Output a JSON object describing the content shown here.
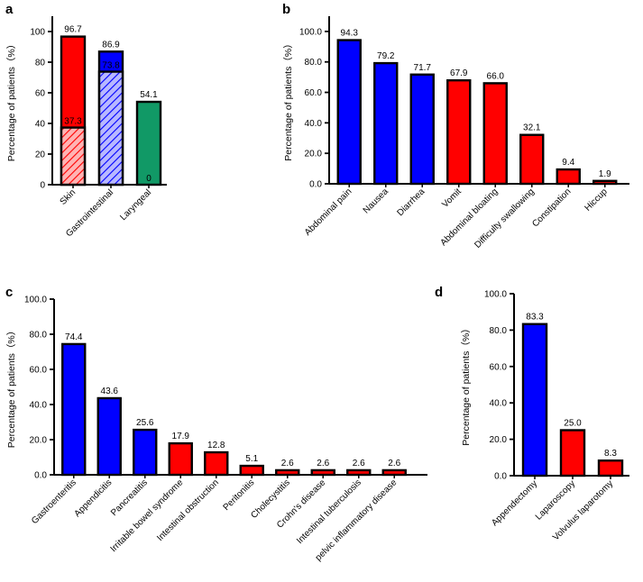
{
  "chart_data": [
    {
      "panel": "a",
      "type": "bar",
      "ylabel": "Percentage of patients（%）",
      "ylim": [
        0,
        110
      ],
      "yticks": [
        "0",
        "20",
        "40",
        "60",
        "80",
        "100"
      ],
      "categories": [
        "Skin",
        "Gastrointestinal",
        "Laryngeal"
      ],
      "values": [
        96.7,
        86.9,
        54.1
      ],
      "labels": [
        "96.7",
        "86.9",
        "54.1"
      ],
      "colors": [
        "#ff0000",
        "#0000ff",
        "#119966"
      ],
      "overlay": {
        "pattern": "hatched",
        "values": [
          37.3,
          73.8,
          0
        ],
        "labels": [
          "37.3",
          "73.8",
          "0"
        ],
        "colors": [
          "#ff0000",
          "#0000ff",
          "#119966"
        ]
      }
    },
    {
      "panel": "b",
      "type": "bar",
      "ylabel": "Percentage of patients（%）",
      "ylim": [
        0,
        110
      ],
      "yticks": [
        "0.0",
        "20.0",
        "40.0",
        "60.0",
        "80.0",
        "100.0"
      ],
      "categories": [
        "Abdominal pain",
        "Nausea",
        "Diarrhea",
        "Vomit",
        "Abdominal bloating",
        "Difficulty swallowing",
        "Constipation",
        "Hiccup"
      ],
      "values": [
        94.3,
        79.2,
        71.7,
        67.9,
        66.0,
        32.1,
        9.4,
        1.9
      ],
      "labels": [
        "94.3",
        "79.2",
        "71.7",
        "67.9",
        "66.0",
        "32.1",
        "9.4",
        "1.9"
      ],
      "colors": [
        "#0000ff",
        "#0000ff",
        "#0000ff",
        "#ff0000",
        "#ff0000",
        "#ff0000",
        "#ff0000",
        "#ff0000"
      ]
    },
    {
      "panel": "c",
      "type": "bar",
      "ylabel": "Percentage of patients（%）",
      "ylim": [
        0,
        100
      ],
      "yticks": [
        "0.0",
        "20.0",
        "40.0",
        "60.0",
        "80.0",
        "100.0"
      ],
      "categories": [
        "Gastroenteritis",
        "Appendicitis",
        "Pancreatitis",
        "Irritable bowel syndrome",
        "Intestinal obstruction",
        "Peritonitis",
        "Cholecystitis",
        "Crohn's disease",
        "Intestinal tuberculosis",
        "pelvic inflammatory disease"
      ],
      "values": [
        74.4,
        43.6,
        25.6,
        17.9,
        12.8,
        5.1,
        2.6,
        2.6,
        2.6,
        2.6
      ],
      "labels": [
        "74.4",
        "43.6",
        "25.6",
        "17.9",
        "12.8",
        "5.1",
        "2.6",
        "2.6",
        "2.6",
        "2.6"
      ],
      "colors": [
        "#0000ff",
        "#0000ff",
        "#0000ff",
        "#ff0000",
        "#ff0000",
        "#ff0000",
        "#ff0000",
        "#ff0000",
        "#ff0000",
        "#ff0000"
      ]
    },
    {
      "panel": "d",
      "type": "bar",
      "ylabel": "Percentage of patients（%）",
      "ylim": [
        0,
        100
      ],
      "yticks": [
        "0.0",
        "20.0",
        "40.0",
        "60.0",
        "80.0",
        "100.0"
      ],
      "categories": [
        "Appendectomy",
        "Laparoscopy",
        "Volvulus laparotomy"
      ],
      "values": [
        83.3,
        25.0,
        8.3
      ],
      "labels": [
        "83.3",
        "25.0",
        "8.3"
      ],
      "colors": [
        "#0000ff",
        "#ff0000",
        "#ff0000"
      ]
    }
  ]
}
